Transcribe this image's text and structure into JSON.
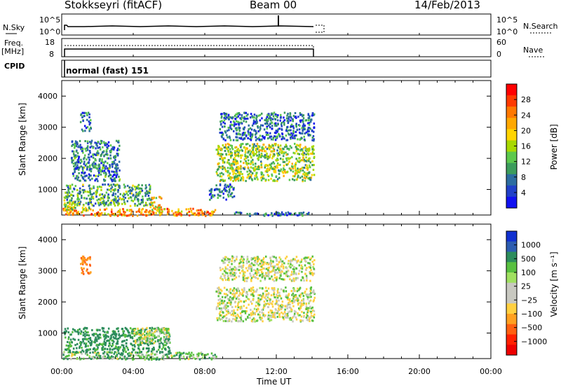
{
  "header": {
    "station": "Stokkseyri (fitACF)",
    "beam": "Beam 00",
    "date": "14/Feb/2013"
  },
  "left_labels": {
    "nsky": "N.Sky",
    "freq": "Freq.",
    "freq_unit": "[MHz]",
    "cpid": "CPID"
  },
  "right_labels": {
    "nsearch": "N.Search",
    "nave": "Nave"
  },
  "cpid_text": "normal (fast) 151",
  "strip_ticks": {
    "nsky": [
      "10^5",
      "10^0"
    ],
    "freq": [
      "18",
      "8"
    ],
    "nave": [
      "60",
      "0"
    ]
  },
  "power_colorbar": {
    "label": "Power [dB]",
    "ticks": [
      "28",
      "24",
      "20",
      "16",
      "12",
      "8",
      "4"
    ],
    "colors": [
      "#ff0000",
      "#ff3a00",
      "#ff7800",
      "#ffa800",
      "#ffd400",
      "#a8d800",
      "#5cc84c",
      "#3c9c5c",
      "#2c6ca0",
      "#2040c8",
      "#1010f0"
    ]
  },
  "velocity_colorbar": {
    "label": "Velocity [m s⁻¹]",
    "ticks": [
      "1000",
      "500",
      "100",
      "25",
      "−25",
      "−100",
      "−500",
      "−1000"
    ],
    "colors": [
      "#1030d0",
      "#2c5cb0",
      "#2c8c5c",
      "#58c040",
      "#a0e060",
      "#c8c8c0",
      "#c8c8c0",
      "#ffd040",
      "#ffa020",
      "#ff6010",
      "#ff2000",
      "#ee0000"
    ]
  },
  "chart_data": [
    {
      "type": "heatmap",
      "title": "Power",
      "ylabel": "Slant Range [km]",
      "xlabel": "Time UT",
      "xticks": [
        "00:00",
        "04:00",
        "08:00",
        "12:00",
        "16:00",
        "20:00",
        "00:00"
      ],
      "yticks": [
        "4000",
        "3000",
        "2000",
        "1000"
      ],
      "ylim": [
        180,
        4500
      ],
      "xlim_hours": [
        0,
        24
      ],
      "colorbar_label": "Power [dB]",
      "patches": [
        {
          "t0": 0.0,
          "t1": 8.6,
          "r0": 180,
          "r1": 420,
          "value": 22
        },
        {
          "t0": 0.1,
          "t1": 1.6,
          "r0": 350,
          "r1": 650,
          "value": 14
        },
        {
          "t0": 0.1,
          "t1": 5.0,
          "r0": 500,
          "r1": 1200,
          "value": 10
        },
        {
          "t0": 0.5,
          "t1": 3.2,
          "r0": 1300,
          "r1": 2600,
          "value": 7
        },
        {
          "t0": 4.9,
          "t1": 5.6,
          "r0": 300,
          "r1": 800,
          "value": 18
        },
        {
          "t0": 8.2,
          "t1": 9.6,
          "r0": 700,
          "r1": 1200,
          "value": 6
        },
        {
          "t0": 9.6,
          "t1": 14.1,
          "r0": 180,
          "r1": 300,
          "value": 5
        },
        {
          "t0": 8.6,
          "t1": 14.1,
          "r0": 1300,
          "r1": 2500,
          "value": 14
        },
        {
          "t0": 8.8,
          "t1": 14.1,
          "r0": 2600,
          "r1": 3500,
          "value": 6
        },
        {
          "t0": 1.0,
          "t1": 1.6,
          "r0": 2900,
          "r1": 3500,
          "value": 6
        }
      ]
    },
    {
      "type": "heatmap",
      "title": "Velocity",
      "ylabel": "Slant Range [km]",
      "xlabel": "Time UT",
      "xticks": [
        "00:00",
        "04:00",
        "08:00",
        "12:00",
        "16:00",
        "20:00",
        "00:00"
      ],
      "yticks": [
        "4000",
        "3000",
        "2000",
        "1000"
      ],
      "ylim": [
        180,
        4500
      ],
      "xlim_hours": [
        0,
        24
      ],
      "colorbar_label": "Velocity [m s⁻¹]",
      "patches": [
        {
          "t0": 0.0,
          "t1": 8.6,
          "r0": 180,
          "r1": 420,
          "value": 60
        },
        {
          "t0": 0.1,
          "t1": 6.0,
          "r0": 400,
          "r1": 1200,
          "value": 150
        },
        {
          "t0": 4.0,
          "t1": 6.0,
          "r0": 700,
          "r1": 1200,
          "value": 0
        },
        {
          "t0": 8.6,
          "t1": 14.1,
          "r0": 1400,
          "r1": 2500,
          "value": 0
        },
        {
          "t0": 8.8,
          "t1": 14.1,
          "r0": 2700,
          "r1": 3500,
          "value": 0
        },
        {
          "t0": 1.0,
          "t1": 1.6,
          "r0": 2900,
          "r1": 3500,
          "value": -300
        }
      ]
    }
  ]
}
